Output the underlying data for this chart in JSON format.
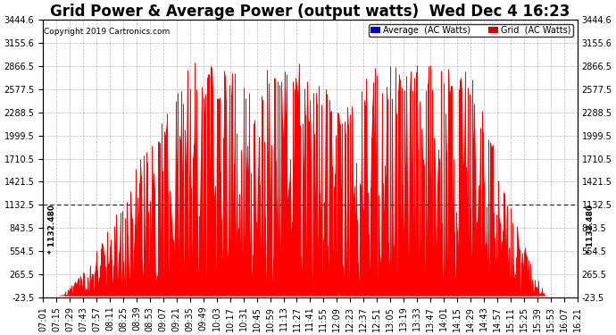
{
  "title": "Grid Power & Average Power (output watts)  Wed Dec 4 16:23",
  "copyright": "Copyright 2019 Cartronics.com",
  "yticks": [
    -23.5,
    265.5,
    554.5,
    843.5,
    1132.5,
    1421.5,
    1710.5,
    1999.5,
    2288.5,
    2577.5,
    2866.5,
    3155.6,
    3444.6
  ],
  "ylim": [
    -23.5,
    3444.6
  ],
  "avg_line_y": 1132.48,
  "legend_avg_label": "Average  (AC Watts)",
  "legend_grid_label": "Grid  (AC Watts)",
  "legend_avg_color": "#0000cc",
  "legend_grid_color": "#cc0000",
  "avg_line_color": "#0000cc",
  "fill_color": "#ff0000",
  "background_color": "#ffffff",
  "grid_color": "#888888",
  "title_fontsize": 12,
  "tick_fontsize": 7,
  "xtick_labels": [
    "07:01",
    "07:15",
    "07:29",
    "07:43",
    "07:57",
    "08:11",
    "08:25",
    "08:39",
    "08:53",
    "09:07",
    "09:21",
    "09:35",
    "09:49",
    "10:03",
    "10:17",
    "10:31",
    "10:45",
    "10:59",
    "11:13",
    "11:27",
    "11:41",
    "11:55",
    "12:09",
    "12:23",
    "12:37",
    "12:51",
    "13:05",
    "13:19",
    "13:33",
    "13:47",
    "14:01",
    "14:15",
    "14:29",
    "14:43",
    "14:57",
    "15:11",
    "15:25",
    "15:39",
    "15:53",
    "16:07",
    "16:21"
  ]
}
